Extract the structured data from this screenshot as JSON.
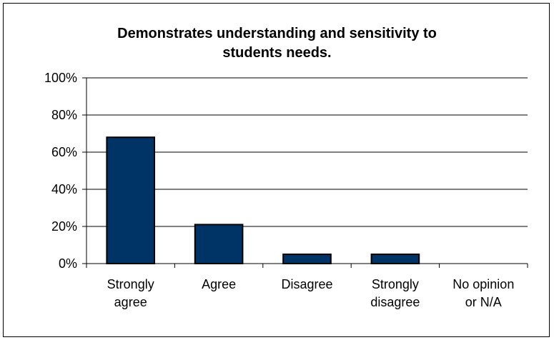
{
  "chart_data": {
    "type": "bar",
    "title_lines": [
      "Demonstrates understanding and sensitivity to",
      "students needs."
    ],
    "categories": [
      [
        "Strongly",
        "agree"
      ],
      [
        "Agree"
      ],
      [
        "Disagree"
      ],
      [
        "Strongly",
        "disagree"
      ],
      [
        "No opinion",
        "or N/A"
      ]
    ],
    "values": [
      68,
      21,
      5,
      5,
      0
    ],
    "ylim": [
      0,
      100
    ],
    "y_ticks": [
      "0%",
      "20%",
      "40%",
      "60%",
      "80%",
      "100%"
    ],
    "y_tick_values": [
      0,
      20,
      40,
      60,
      80,
      100
    ],
    "grid": true,
    "legend": "none",
    "colors": {
      "bar_fill": "#003366",
      "bar_stroke": "#000000",
      "grid": "#000000"
    }
  }
}
